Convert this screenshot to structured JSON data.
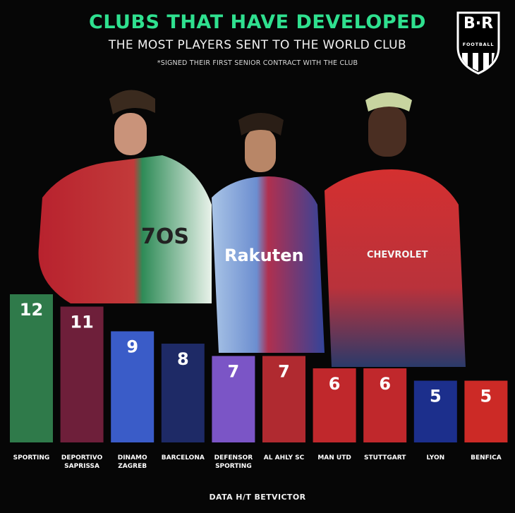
{
  "header": {
    "title": "CLUBS THAT HAVE DEVELOPED",
    "subtitle": "THE MOST PLAYERS SENT TO THE WORLD CLUB",
    "footnote": "*SIGNED THEIR FIRST SENIOR CONTRACT WITH THE CLUB"
  },
  "logo": {
    "mark": "B·R",
    "sub": "FOOTBALL"
  },
  "players": [
    {
      "kit_text": "7OS",
      "kit_color": "#1f8a4c"
    },
    {
      "kit_text": "Rakuten",
      "kit_color": "#a52a4a"
    },
    {
      "kit_text": "CHEVROLET",
      "kit_color": "#d42a2a"
    }
  ],
  "source": "DATA H/T BETVICTOR",
  "chart_data": {
    "type": "bar",
    "categories": [
      "SPORTING",
      "DEPORTIVO SAPRISSA",
      "DINAMO ZAGREB",
      "BARCELONA",
      "DEFENSOR SPORTING",
      "AL AHLY SC",
      "MAN UTD",
      "STUTTGART",
      "LYON",
      "BENFICA"
    ],
    "category_lines": [
      [
        "SPORTING"
      ],
      [
        "DEPORTIVO",
        "SAPRISSA"
      ],
      [
        "DINAMO",
        "ZAGREB"
      ],
      [
        "BARCELONA"
      ],
      [
        "DEFENSOR",
        "SPORTING"
      ],
      [
        "AL AHLY SC"
      ],
      [
        "MAN UTD"
      ],
      [
        "STUTTGART"
      ],
      [
        "LYON"
      ],
      [
        "BENFICA"
      ]
    ],
    "values": [
      12,
      11,
      9,
      8,
      7,
      7,
      6,
      6,
      5,
      5
    ],
    "colors": [
      "#2f7a4a",
      "#6e1f3a",
      "#3a5cc8",
      "#1e2a66",
      "#7b55c6",
      "#b02a30",
      "#c0282c",
      "#c0282c",
      "#1c2f8c",
      "#cc2a26"
    ],
    "ylim": [
      0,
      12
    ],
    "grid": false
  }
}
